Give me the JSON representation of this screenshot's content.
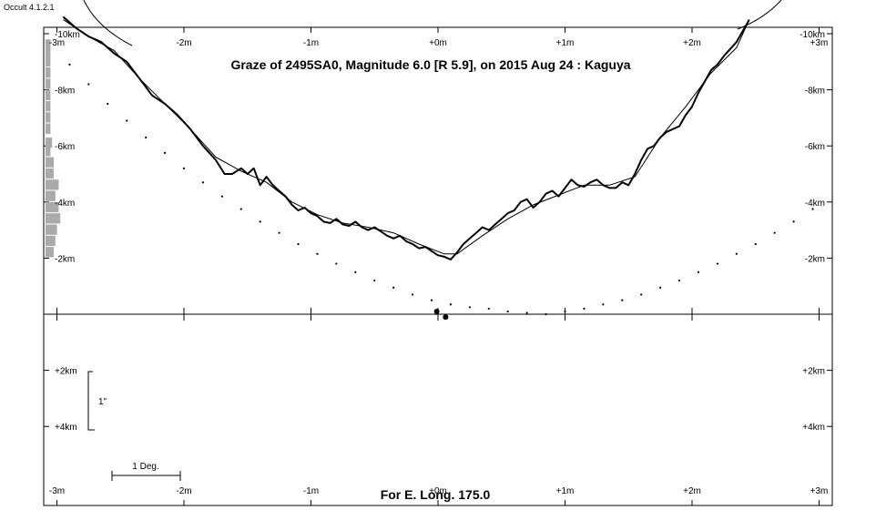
{
  "app_label": "Occult 4.1.2.1",
  "chart_data": {
    "type": "line",
    "title": "Graze of  2495SA0,  Magnitude 6.0 [R 5.9],  on 2015 Aug 24  :  Kaguya",
    "footer": "For E. Long. 175.0",
    "x_ticks_top": [
      "-3m",
      "-2m",
      "-1m",
      "+0m",
      "+1m",
      "+2m",
      "+3m"
    ],
    "x_ticks_bottom": [
      "-3m",
      "-2m",
      "-1m",
      "+0m",
      "+1m",
      "+2m",
      "+3m"
    ],
    "x_tick_values": [
      -3,
      -2,
      -1,
      0,
      1,
      2,
      3
    ],
    "xlim": [
      -3,
      3
    ],
    "y_ticks_upper": [
      "-10km",
      "-8km",
      "-6km",
      "-4km",
      "-2km"
    ],
    "y_tick_values_upper": [
      -10,
      -8,
      -6,
      -4,
      -2
    ],
    "y_ticks_lower": [
      "+2km",
      "+4km"
    ],
    "y_tick_values_lower": [
      2,
      4
    ],
    "ylim": [
      -10.3,
      6.3
    ],
    "scale_arcsec_label": "1\"",
    "scale_degree_label": "1 Deg.",
    "series": [
      {
        "role": "limb-profile-kaguya",
        "x": [
          -2.95,
          -2.85,
          -2.75,
          -2.65,
          -2.55,
          -2.45,
          -2.35,
          -2.25,
          -2.15,
          -2.05,
          -1.95,
          -1.85,
          -1.75,
          -1.68,
          -1.62,
          -1.55,
          -1.5,
          -1.45,
          -1.4,
          -1.35,
          -1.3,
          -1.25,
          -1.2,
          -1.15,
          -1.1,
          -1.05,
          -1.0,
          -0.95,
          -0.9,
          -0.85,
          -0.8,
          -0.75,
          -0.7,
          -0.65,
          -0.6,
          -0.55,
          -0.5,
          -0.45,
          -0.4,
          -0.35,
          -0.3,
          -0.25,
          -0.2,
          -0.15,
          -0.1,
          -0.05,
          0.0,
          0.05,
          0.1,
          0.15,
          0.2,
          0.25,
          0.3,
          0.35,
          0.4,
          0.45,
          0.5,
          0.55,
          0.6,
          0.65,
          0.7,
          0.75,
          0.8,
          0.85,
          0.9,
          0.95,
          1.0,
          1.05,
          1.1,
          1.15,
          1.2,
          1.25,
          1.3,
          1.35,
          1.4,
          1.45,
          1.5,
          1.55,
          1.6,
          1.65,
          1.7,
          1.75,
          1.8,
          1.85,
          1.9,
          1.95,
          2.0,
          2.05,
          2.1,
          2.15,
          2.2,
          2.25,
          2.35,
          2.45
        ],
        "y": [
          -10.6,
          -10.2,
          -9.9,
          -9.7,
          -9.3,
          -9.0,
          -8.4,
          -7.8,
          -7.5,
          -7.1,
          -6.6,
          -6.0,
          -5.5,
          -5.0,
          -5.0,
          -5.2,
          -5.0,
          -5.2,
          -4.6,
          -4.9,
          -4.6,
          -4.4,
          -4.2,
          -3.9,
          -3.7,
          -3.8,
          -3.6,
          -3.5,
          -3.3,
          -3.25,
          -3.4,
          -3.2,
          -3.15,
          -3.3,
          -3.1,
          -3.0,
          -3.1,
          -2.95,
          -2.8,
          -2.7,
          -2.8,
          -2.6,
          -2.5,
          -2.35,
          -2.4,
          -2.25,
          -2.1,
          -2.05,
          -1.95,
          -2.2,
          -2.5,
          -2.7,
          -2.9,
          -3.1,
          -3.0,
          -3.2,
          -3.4,
          -3.6,
          -3.7,
          -4.0,
          -4.1,
          -3.8,
          -4.0,
          -4.3,
          -4.4,
          -4.2,
          -4.5,
          -4.8,
          -4.6,
          -4.55,
          -4.7,
          -4.8,
          -4.6,
          -4.5,
          -4.5,
          -4.7,
          -4.6,
          -5.0,
          -5.5,
          -5.9,
          -6.0,
          -6.3,
          -6.5,
          -6.6,
          -6.7,
          -7.1,
          -7.4,
          -7.9,
          -8.3,
          -8.7,
          -8.9,
          -9.2,
          -9.7,
          -10.5
        ]
      },
      {
        "role": "limb-profile-smoothed",
        "x": [
          -2.95,
          -2.75,
          -2.55,
          -2.35,
          -2.15,
          -1.95,
          -1.75,
          -1.55,
          -1.35,
          -1.15,
          -0.95,
          -0.75,
          -0.55,
          -0.35,
          -0.15,
          0.05,
          0.15,
          0.35,
          0.55,
          0.75,
          0.95,
          1.15,
          1.35,
          1.55,
          1.75,
          1.95,
          2.15,
          2.35,
          2.45
        ],
        "y": [
          -10.5,
          -9.9,
          -9.4,
          -8.4,
          -7.5,
          -6.6,
          -5.6,
          -5.1,
          -4.7,
          -4.0,
          -3.55,
          -3.25,
          -3.1,
          -2.9,
          -2.5,
          -2.15,
          -2.15,
          -2.8,
          -3.4,
          -3.9,
          -4.25,
          -4.6,
          -4.6,
          -4.9,
          -6.3,
          -7.4,
          -8.6,
          -9.5,
          -10.5
        ]
      }
    ],
    "dotted_curve": {
      "x": [
        -2.9,
        -2.75,
        -2.6,
        -2.45,
        -2.3,
        -2.15,
        -2.0,
        -1.85,
        -1.7,
        -1.55,
        -1.4,
        -1.25,
        -1.1,
        -0.95,
        -0.8,
        -0.65,
        -0.5,
        -0.35,
        -0.2,
        -0.05,
        0.1,
        0.25,
        0.4,
        0.55,
        0.7,
        0.85,
        1.0,
        1.15,
        1.3,
        1.45,
        1.6,
        1.75,
        1.9,
        2.05,
        2.2,
        2.35,
        2.5,
        2.65,
        2.8,
        2.95
      ],
      "y": [
        -8.9,
        -8.2,
        -7.5,
        -6.9,
        -6.3,
        -5.75,
        -5.2,
        -4.7,
        -4.2,
        -3.75,
        -3.3,
        -2.9,
        -2.5,
        -2.15,
        -1.8,
        -1.5,
        -1.2,
        -0.95,
        -0.7,
        -0.5,
        -0.35,
        -0.25,
        -0.2,
        -0.1,
        -0.05,
        0.0,
        -0.1,
        -0.2,
        -0.35,
        -0.5,
        -0.7,
        -0.95,
        -1.2,
        -1.5,
        -1.8,
        -2.15,
        -2.5,
        -2.9,
        -3.3,
        -3.75
      ]
    },
    "star_markers": [
      {
        "x": -0.01,
        "y": 0.0
      },
      {
        "x": 0.06,
        "y": 0.2
      }
    ],
    "side_histogram": [
      {
        "y": -9.6,
        "value": 0.3
      },
      {
        "y": -9.3,
        "value": 0.3
      },
      {
        "y": -9.0,
        "value": 0.3
      },
      {
        "y": -8.6,
        "value": 0.3
      },
      {
        "y": -8.2,
        "value": 0.3
      },
      {
        "y": -7.8,
        "value": 0.3
      },
      {
        "y": -7.4,
        "value": 0.3
      },
      {
        "y": -7.0,
        "value": 0.3
      },
      {
        "y": -6.6,
        "value": 0.3
      },
      {
        "y": -6.1,
        "value": 0.4
      },
      {
        "y": -5.8,
        "value": 0.3
      },
      {
        "y": -5.4,
        "value": 0.5
      },
      {
        "y": -5.0,
        "value": 0.5
      },
      {
        "y": -4.6,
        "value": 0.8
      },
      {
        "y": -4.2,
        "value": 0.6
      },
      {
        "y": -3.8,
        "value": 0.8
      },
      {
        "y": -3.4,
        "value": 0.9
      },
      {
        "y": -3.0,
        "value": 0.7
      },
      {
        "y": -2.6,
        "value": 0.6
      },
      {
        "y": -2.2,
        "value": 0.5
      }
    ],
    "colors": {
      "background": "#ffffff",
      "axes": "#000000",
      "histogram": "#aaaaaa",
      "dots": "#000000"
    }
  }
}
